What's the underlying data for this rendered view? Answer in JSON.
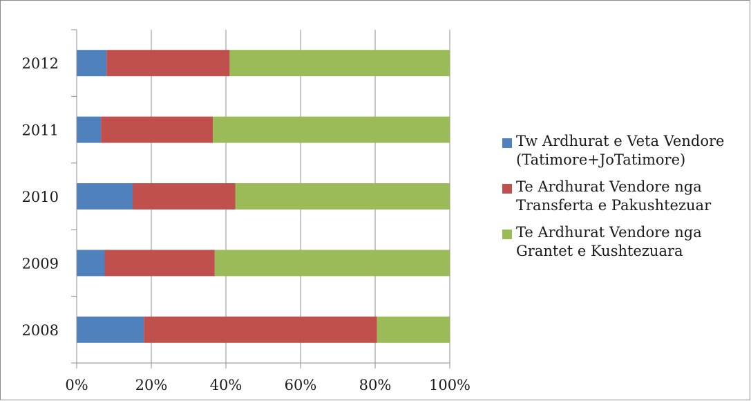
{
  "chart_data": {
    "type": "bar",
    "orientation": "horizontal",
    "stacked": "percent",
    "categories": [
      "2008",
      "2009",
      "2010",
      "2011",
      "2012"
    ],
    "series": [
      {
        "name": "Tw Ardhurat e Veta Vendore (Tatimore+JoTatimore)",
        "color": "#4f81bd",
        "values": [
          18,
          7.5,
          15,
          6.5,
          8
        ]
      },
      {
        "name": "Te Ardhurat Vendore nga Transferta e Pakushtezuar",
        "color": "#c0504d",
        "values": [
          62.5,
          29.5,
          27.5,
          30,
          33
        ]
      },
      {
        "name": "Te Ardhurat Vendore nga Grantet e Kushtezuara",
        "color": "#9bbb59",
        "values": [
          19.5,
          63,
          57.5,
          63.5,
          59
        ]
      }
    ],
    "x_ticks": [
      "0%",
      "20%",
      "40%",
      "60%",
      "80%",
      "100%"
    ],
    "xlim": [
      0,
      100
    ],
    "grid": "vertical",
    "legend_position": "right"
  }
}
